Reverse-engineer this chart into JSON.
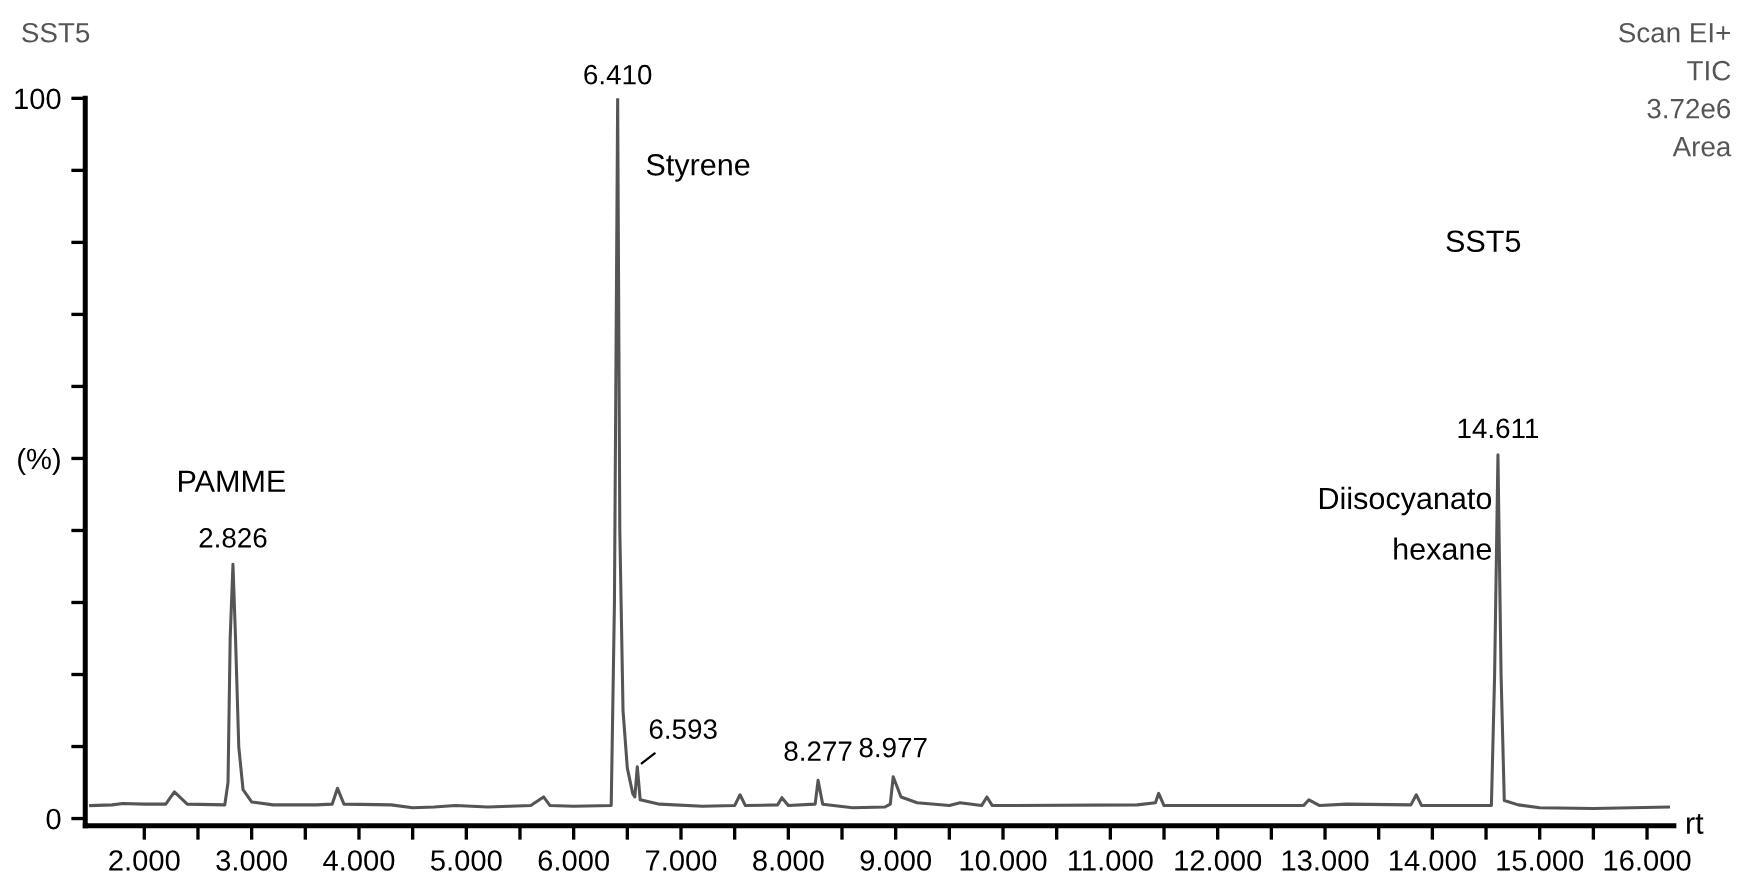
{
  "chart_data": {
    "type": "line",
    "title": "SST5",
    "subtitle": "Scan EI+\nTIC\n3.72e6\nArea",
    "xlabel": "rt",
    "x": [
      1.5,
      1.7,
      1.8,
      2.0,
      2.2,
      2.28,
      2.4,
      2.75,
      2.78,
      2.8,
      2.826,
      2.85,
      2.88,
      2.92,
      3.0,
      3.2,
      3.6,
      3.75,
      3.8,
      3.86,
      4.3,
      4.5,
      4.7,
      4.9,
      5.2,
      5.4,
      5.6,
      5.72,
      5.78,
      6.0,
      6.35,
      6.38,
      6.41,
      6.43,
      6.46,
      6.5,
      6.55,
      6.57,
      6.593,
      6.62,
      6.8,
      7.2,
      7.5,
      7.55,
      7.6,
      7.9,
      7.94,
      8.0,
      8.25,
      8.277,
      8.32,
      8.6,
      8.9,
      8.95,
      8.977,
      9.05,
      9.2,
      9.5,
      9.6,
      9.8,
      9.85,
      9.9,
      11.25,
      11.42,
      11.45,
      11.5,
      12.8,
      12.85,
      12.95,
      13.2,
      13.8,
      13.85,
      13.9,
      14.55,
      14.58,
      14.611,
      14.64,
      14.67,
      14.8,
      15.0,
      15.5,
      16.2
    ],
    "series": [
      {
        "color": "#555555",
        "values": [
          1.8,
          1.9,
          2.1,
          2.0,
          2.0,
          3.7,
          2.0,
          1.9,
          5,
          25,
          35.3,
          25,
          10,
          4,
          2.3,
          1.9,
          1.9,
          2.0,
          4.2,
          2.0,
          1.9,
          1.5,
          1.6,
          1.8,
          1.6,
          1.7,
          1.8,
          3.0,
          1.8,
          1.7,
          1.8,
          30,
          100,
          40,
          15,
          7,
          3.5,
          3.0,
          7.2,
          2.6,
          2.0,
          1.7,
          1.8,
          3.3,
          1.8,
          1.9,
          2.9,
          1.8,
          2.0,
          5.3,
          2.0,
          1.5,
          1.6,
          2.0,
          5.8,
          3.0,
          2.2,
          1.8,
          2.2,
          1.8,
          3.0,
          1.8,
          1.9,
          2.2,
          3.5,
          1.8,
          1.8,
          2.6,
          1.8,
          2.0,
          1.9,
          3.3,
          1.8,
          1.8,
          20,
          50.5,
          20,
          2.5,
          1.9,
          1.5,
          1.4,
          1.6
        ]
      }
    ],
    "xlim": [
      1.45,
      16.25
    ],
    "ylim": [
      -1,
      100
    ],
    "xticks": [
      {
        "value": 2,
        "label": "2.000"
      },
      {
        "value": 2.5,
        "label": null
      },
      {
        "value": 3,
        "label": "3.000"
      },
      {
        "value": 3.5,
        "label": null
      },
      {
        "value": 4,
        "label": "4.000"
      },
      {
        "value": 4.5,
        "label": null
      },
      {
        "value": 5,
        "label": "5.000"
      },
      {
        "value": 5.5,
        "label": null
      },
      {
        "value": 6,
        "label": "6.000"
      },
      {
        "value": 6.5,
        "label": null
      },
      {
        "value": 7,
        "label": "7.000"
      },
      {
        "value": 7.5,
        "label": null
      },
      {
        "value": 8,
        "label": "8.000"
      },
      {
        "value": 8.5,
        "label": null
      },
      {
        "value": 9,
        "label": "9.000"
      },
      {
        "value": 9.5,
        "label": null
      },
      {
        "value": 10,
        "label": "10.000"
      },
      {
        "value": 10.5,
        "label": null
      },
      {
        "value": 11,
        "label": "11.000"
      },
      {
        "value": 11.5,
        "label": null
      },
      {
        "value": 12,
        "label": "12.000"
      },
      {
        "value": 12.5,
        "label": null
      },
      {
        "value": 13,
        "label": "13.000"
      },
      {
        "value": 13.5,
        "label": null
      },
      {
        "value": 14,
        "label": "14.000"
      },
      {
        "value": 14.5,
        "label": null
      },
      {
        "value": 15,
        "label": "15.000"
      },
      {
        "value": 15.5,
        "label": null
      },
      {
        "value": 16,
        "label": "16.000"
      }
    ],
    "yticks": [
      0,
      {
        "value": 10,
        "label": null
      },
      {
        "value": 20,
        "label": null
      },
      {
        "value": 30,
        "label": null
      },
      {
        "value": 40,
        "label": null
      },
      {
        "value": 50,
        "label": "(%)"
      },
      {
        "value": 60,
        "label": null
      },
      {
        "value": 70,
        "label": null
      },
      {
        "value": 80,
        "label": null
      },
      {
        "value": 90,
        "label": null
      },
      100
    ],
    "grid": false,
    "legend": false,
    "marker": "none",
    "line_style": "solid",
    "annotations": [
      {
        "text": "6.410",
        "x": 6.41,
        "y": 100
      },
      {
        "text": "Styrene",
        "x": 6.41,
        "y": 100
      },
      {
        "text": "2.826",
        "x": 2.826,
        "y": 35.3
      },
      "PAMME",
      {
        "text": "6.593",
        "x": 6.593,
        "y": 7.2
      },
      {
        "text": "8.277",
        "x": 8.277,
        "y": 5.3
      },
      {
        "text": "8.977",
        "x": 8.977,
        "y": 5.8
      },
      {
        "text": "14.611",
        "x": 14.611,
        "y": 50.5
      },
      {
        "text": "Diisocyanato\nhexane",
        "x": 14.611,
        "y": 50.5
      },
      "SST5"
    ]
  }
}
